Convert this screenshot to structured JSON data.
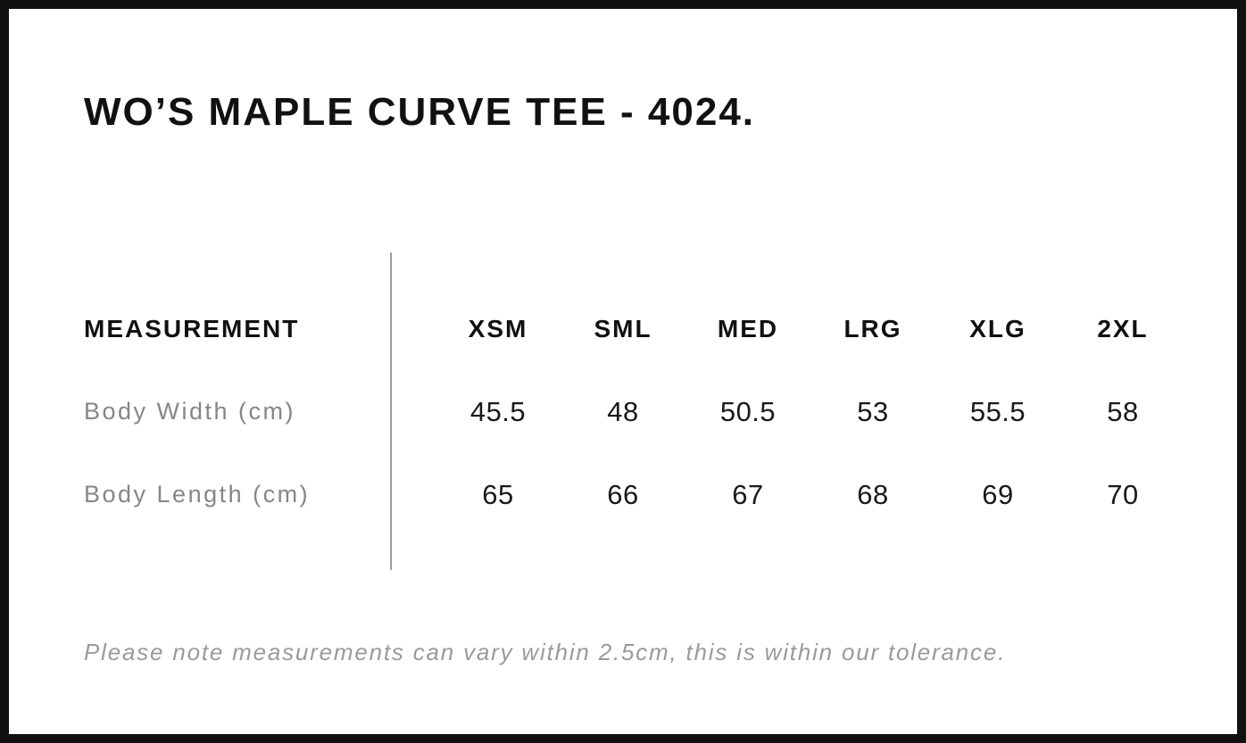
{
  "title": "WO’S MAPLE CURVE TEE - 4024.",
  "table": {
    "measurement_header": "MEASUREMENT",
    "sizes": [
      "XSM",
      "SML",
      "MED",
      "LRG",
      "XLG",
      "2XL"
    ],
    "rows": [
      {
        "label": "Body Width (cm)",
        "values": [
          "45.5",
          "48",
          "50.5",
          "53",
          "55.5",
          "58"
        ]
      },
      {
        "label": "Body Length (cm)",
        "values": [
          "65",
          "66",
          "67",
          "68",
          "69",
          "70"
        ]
      }
    ]
  },
  "note": "Please note measurements can vary within 2.5cm, this is within our tolerance.",
  "colors": {
    "page_border": "#111111",
    "heading_text": "#111111",
    "value_text": "#1a1a1a",
    "label_text": "#868686",
    "note_text": "#9a9a9a",
    "divider": "#9a9a9a",
    "background": "#ffffff"
  }
}
